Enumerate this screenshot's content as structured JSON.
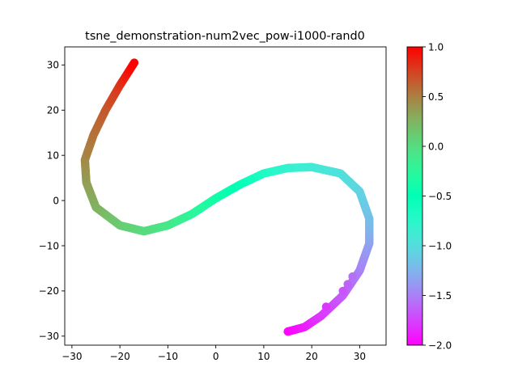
{
  "chart_data": {
    "type": "scatter",
    "title": "tsne_demonstration-num2vec_pow-i1000-rand0",
    "xlabel": "",
    "ylabel": "",
    "xlim": [
      -31.5,
      35.5
    ],
    "ylim": [
      -32,
      34
    ],
    "xticks": [
      -30,
      -20,
      -10,
      0,
      10,
      20,
      30
    ],
    "yticks": [
      -30,
      -20,
      -10,
      0,
      10,
      20,
      30
    ],
    "grid": false,
    "colormap": "rainbow",
    "colorbar": {
      "range": [
        -2.0,
        1.0
      ],
      "ticks": [
        -2.0,
        -1.5,
        -1.0,
        -0.5,
        0.0,
        0.5,
        1.0
      ],
      "tick_labels": [
        "−2.0",
        "−1.5",
        "−1.0",
        "−0.5",
        "0.0",
        "0.5",
        "1.0"
      ]
    },
    "x_tick_labels": [
      "−30",
      "−20",
      "−10",
      "0",
      "10",
      "20",
      "30"
    ],
    "y_tick_labels": [
      "−30",
      "−20",
      "−10",
      "0",
      "10",
      "20",
      "30"
    ],
    "curve": [
      {
        "x": 15.0,
        "y": -29.0,
        "c": -2.0
      },
      {
        "x": 18.5,
        "y": -28.0,
        "c": -1.9
      },
      {
        "x": 22.0,
        "y": -25.5,
        "c": -1.8
      },
      {
        "x": 26.5,
        "y": -21.0,
        "c": -1.65
      },
      {
        "x": 30.0,
        "y": -15.5,
        "c": -1.5
      },
      {
        "x": 32.0,
        "y": -9.5,
        "c": -1.35
      },
      {
        "x": 32.0,
        "y": -4.0,
        "c": -1.2
      },
      {
        "x": 30.0,
        "y": 2.0,
        "c": -1.08
      },
      {
        "x": 26.0,
        "y": 6.0,
        "c": -0.98
      },
      {
        "x": 20.0,
        "y": 7.4,
        "c": -0.9
      },
      {
        "x": 15.0,
        "y": 7.2,
        "c": -0.82
      },
      {
        "x": 10.0,
        "y": 6.0,
        "c": -0.7
      },
      {
        "x": 5.0,
        "y": 3.5,
        "c": -0.55
      },
      {
        "x": 0.0,
        "y": 0.5,
        "c": -0.4
      },
      {
        "x": -5.0,
        "y": -3.0,
        "c": -0.25
      },
      {
        "x": -10.0,
        "y": -5.5,
        "c": -0.1
      },
      {
        "x": -15.0,
        "y": -6.8,
        "c": 0.0
      },
      {
        "x": -20.0,
        "y": -5.5,
        "c": 0.1
      },
      {
        "x": -25.0,
        "y": -1.5,
        "c": 0.25
      },
      {
        "x": -27.0,
        "y": 4.0,
        "c": 0.35
      },
      {
        "x": -27.3,
        "y": 9.0,
        "c": 0.45
      },
      {
        "x": -25.5,
        "y": 14.5,
        "c": 0.55
      },
      {
        "x": -23.0,
        "y": 20.0,
        "c": 0.65
      },
      {
        "x": -20.0,
        "y": 25.5,
        "c": 0.8
      },
      {
        "x": -17.0,
        "y": 30.5,
        "c": 1.0
      }
    ],
    "outliers": [
      {
        "x": 23.0,
        "y": -23.5,
        "c": -1.8
      },
      {
        "x": 26.5,
        "y": -20.0,
        "c": -1.68
      },
      {
        "x": 27.5,
        "y": -18.5,
        "c": -1.62
      },
      {
        "x": 28.5,
        "y": -16.8,
        "c": -1.56
      }
    ]
  }
}
